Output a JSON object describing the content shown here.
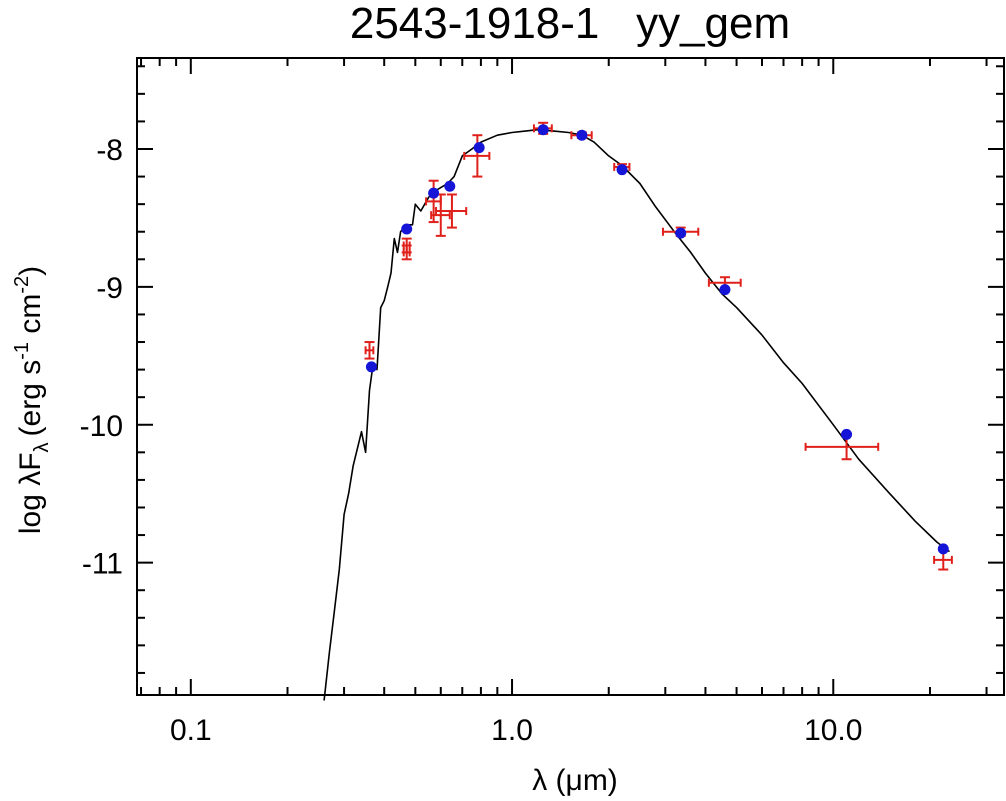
{
  "chart_data": {
    "type": "scatter",
    "title": "2543-1918-1   yy_gem",
    "xlabel": "λ (μm)",
    "ylabel": "log λF",
    "ylabel_sub": "λ",
    "ylabel_units": "(erg s",
    "ylabel_exp1": "-1",
    "ylabel_mid": " cm",
    "ylabel_exp2": "-2",
    "ylabel_end": ")",
    "x_scale": "log",
    "xlim": [
      0.068,
      34
    ],
    "ylim": [
      -11.96,
      -7.34
    ],
    "x_ticks": [
      0.1,
      1.0,
      10.0
    ],
    "x_tick_labels": [
      "0.1",
      "1.0",
      "10.0"
    ],
    "y_ticks": [
      -8,
      -9,
      -10,
      -11
    ],
    "y_tick_labels": [
      "-8",
      "-9",
      "-10",
      "-11"
    ],
    "grid": false,
    "colors": {
      "model": "#000000",
      "observed": "#e0201a",
      "synthetic": "#1515d8"
    },
    "series": [
      {
        "kind": "model_spectrum",
        "x": [
          0.26,
          0.27,
          0.28,
          0.29,
          0.3,
          0.31,
          0.32,
          0.34,
          0.35,
          0.36,
          0.37,
          0.38,
          0.39,
          0.4,
          0.41,
          0.42,
          0.43,
          0.44,
          0.45,
          0.47,
          0.49,
          0.5,
          0.52,
          0.55,
          0.58,
          0.6,
          0.63,
          0.66,
          0.7,
          0.75,
          0.8,
          0.9,
          1.0,
          1.1,
          1.2,
          1.35,
          1.5,
          1.65,
          1.8,
          2.0,
          2.2,
          2.5,
          2.8,
          3.2,
          3.6,
          4.0,
          4.5,
          5.0,
          6.0,
          7.0,
          8.0,
          10.0,
          12.0,
          15.0,
          18.0,
          21.0,
          23.0
        ],
        "y": [
          -12.0,
          -11.65,
          -11.35,
          -11.05,
          -10.65,
          -10.5,
          -10.3,
          -10.05,
          -10.2,
          -9.75,
          -9.55,
          -9.6,
          -9.15,
          -9.1,
          -9.0,
          -8.9,
          -8.65,
          -8.75,
          -8.6,
          -8.55,
          -8.55,
          -8.4,
          -8.45,
          -8.35,
          -8.3,
          -8.28,
          -8.25,
          -8.2,
          -8.05,
          -8.0,
          -7.95,
          -7.9,
          -7.88,
          -7.87,
          -7.86,
          -7.87,
          -7.88,
          -7.9,
          -7.95,
          -8.05,
          -8.12,
          -8.25,
          -8.42,
          -8.6,
          -8.75,
          -8.9,
          -9.05,
          -9.15,
          -9.35,
          -9.55,
          -9.7,
          -10.0,
          -10.25,
          -10.5,
          -10.7,
          -10.85,
          -10.92
        ]
      },
      {
        "kind": "synthetic_photometry",
        "x": [
          0.365,
          0.47,
          0.57,
          0.64,
          0.79,
          1.25,
          1.65,
          2.2,
          3.35,
          4.6,
          11.0,
          22.0
        ],
        "y": [
          -9.58,
          -8.58,
          -8.32,
          -8.27,
          -7.99,
          -7.86,
          -7.9,
          -8.15,
          -8.61,
          -9.02,
          -10.07,
          -10.9
        ]
      },
      {
        "kind": "observed_photometry",
        "x": [
          0.36,
          0.47,
          0.47,
          0.57,
          0.6,
          0.65,
          0.78,
          1.25,
          1.65,
          2.2,
          3.35,
          4.6,
          11.0,
          22.0
        ],
        "y": [
          -9.46,
          -8.7,
          -8.75,
          -8.38,
          -8.48,
          -8.45,
          -8.05,
          -7.85,
          -7.9,
          -8.13,
          -8.6,
          -8.97,
          -10.16,
          -10.98
        ],
        "xerr_low": [
          0.01,
          0.01,
          0.01,
          0.03,
          0.04,
          0.07,
          0.07,
          0.08,
          0.12,
          0.12,
          0.4,
          0.5,
          2.8,
          1.4
        ],
        "xerr_high": [
          0.01,
          0.01,
          0.01,
          0.03,
          0.04,
          0.07,
          0.07,
          0.08,
          0.12,
          0.12,
          0.45,
          0.55,
          2.8,
          1.4
        ],
        "yerr": [
          0.06,
          0.05,
          0.05,
          0.15,
          0.15,
          0.12,
          0.15,
          0.04,
          0.02,
          0.02,
          0.03,
          0.04,
          0.09,
          0.07
        ]
      }
    ]
  }
}
